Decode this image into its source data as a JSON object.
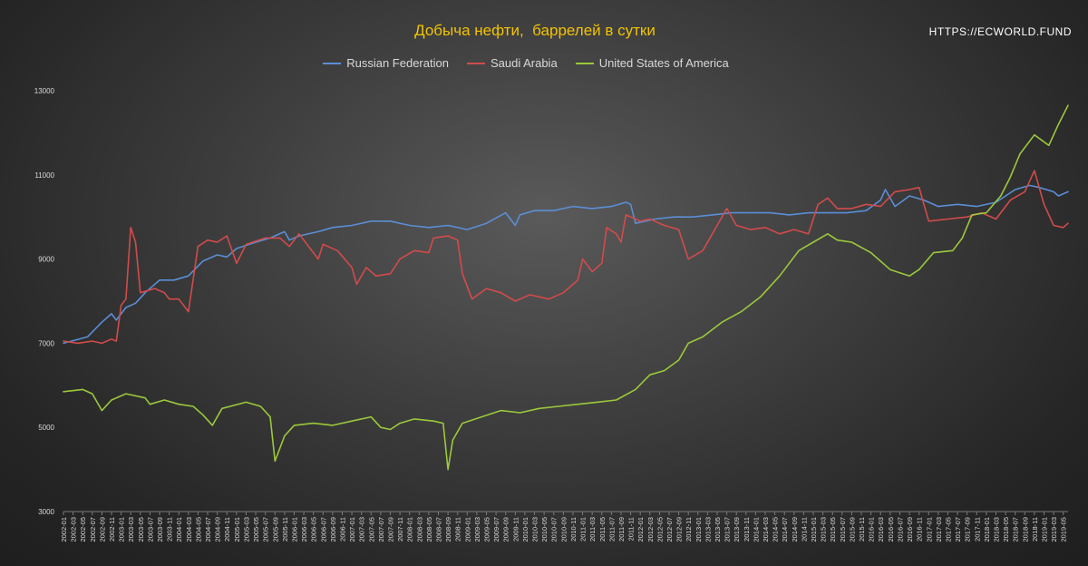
{
  "chart_data": {
    "type": "line",
    "title": "Добыча нефти,  баррелей в сутки",
    "xlabel": "",
    "ylabel": "",
    "ylim": [
      3000,
      13000
    ],
    "yticks": [
      3000,
      5000,
      7000,
      9000,
      11000,
      13000
    ],
    "grid": false,
    "legend_position": "top",
    "x_ticks": [
      "2002-01",
      "2002-03",
      "2002-05",
      "2002-07",
      "2002-09",
      "2002-11",
      "2003-01",
      "2003-03",
      "2003-05",
      "2003-07",
      "2003-09",
      "2003-11",
      "2004-01",
      "2004-03",
      "2004-05",
      "2004-07",
      "2004-09",
      "2004-11",
      "2005-01",
      "2005-03",
      "2005-05",
      "2005-07",
      "2005-09",
      "2005-11",
      "2006-01",
      "2006-03",
      "2006-05",
      "2006-07",
      "2006-09",
      "2006-11",
      "2007-01",
      "2007-03",
      "2007-05",
      "2007-07",
      "2007-09",
      "2007-11",
      "2008-01",
      "2008-03",
      "2008-05",
      "2008-07",
      "2008-09",
      "2008-11",
      "2009-01",
      "2009-03",
      "2009-05",
      "2009-07",
      "2009-09",
      "2009-11",
      "2010-01",
      "2010-03",
      "2010-05",
      "2010-07",
      "2010-09",
      "2010-11",
      "2011-01",
      "2011-03",
      "2011-05",
      "2011-07",
      "2011-09",
      "2011-11",
      "2012-01",
      "2012-03",
      "2012-05",
      "2012-07",
      "2012-09",
      "2012-11",
      "2013-01",
      "2013-03",
      "2013-05",
      "2013-07",
      "2013-09",
      "2013-11",
      "2014-01",
      "2014-03",
      "2014-05",
      "2014-07",
      "2014-09",
      "2014-11",
      "2015-01",
      "2015-03",
      "2015-05",
      "2015-07",
      "2015-09",
      "2015-11",
      "2016-01",
      "2016-03",
      "2016-05",
      "2016-07",
      "2016-09",
      "2016-11",
      "2017-01",
      "2017-03",
      "2017-05",
      "2017-07",
      "2017-09",
      "2017-11",
      "2018-01",
      "2018-03",
      "2018-05",
      "2018-07",
      "2018-09",
      "2018-11",
      "2019-01",
      "2019-03",
      "2019-05"
    ],
    "series": [
      {
        "name": "Russian Federation",
        "color": "#5b8ed6",
        "points": [
          [
            "2002-01",
            7000
          ],
          [
            "2002-06",
            7150
          ],
          [
            "2002-09",
            7500
          ],
          [
            "2002-11",
            7700
          ],
          [
            "2002-12",
            7550
          ],
          [
            "2003-02",
            7850
          ],
          [
            "2003-04",
            7950
          ],
          [
            "2003-06",
            8200
          ],
          [
            "2003-09",
            8500
          ],
          [
            "2003-12",
            8500
          ],
          [
            "2004-03",
            8600
          ],
          [
            "2004-06",
            8950
          ],
          [
            "2004-09",
            9100
          ],
          [
            "2004-11",
            9050
          ],
          [
            "2005-01",
            9250
          ],
          [
            "2005-05",
            9400
          ],
          [
            "2005-08",
            9500
          ],
          [
            "2005-11",
            9650
          ],
          [
            "2005-12",
            9450
          ],
          [
            "2006-02",
            9550
          ],
          [
            "2006-06",
            9650
          ],
          [
            "2006-09",
            9750
          ],
          [
            "2007-01",
            9800
          ],
          [
            "2007-05",
            9900
          ],
          [
            "2007-09",
            9900
          ],
          [
            "2008-01",
            9800
          ],
          [
            "2008-05",
            9750
          ],
          [
            "2008-09",
            9800
          ],
          [
            "2009-01",
            9700
          ],
          [
            "2009-05",
            9850
          ],
          [
            "2009-09",
            10100
          ],
          [
            "2009-11",
            9800
          ],
          [
            "2009-12",
            10050
          ],
          [
            "2010-03",
            10150
          ],
          [
            "2010-07",
            10150
          ],
          [
            "2010-11",
            10250
          ],
          [
            "2011-03",
            10200
          ],
          [
            "2011-07",
            10250
          ],
          [
            "2011-10",
            10350
          ],
          [
            "2011-11",
            10300
          ],
          [
            "2011-12",
            9850
          ],
          [
            "2012-04",
            9950
          ],
          [
            "2012-08",
            10000
          ],
          [
            "2012-12",
            10000
          ],
          [
            "2013-04",
            10050
          ],
          [
            "2013-08",
            10100
          ],
          [
            "2013-12",
            10100
          ],
          [
            "2014-04",
            10100
          ],
          [
            "2014-08",
            10050
          ],
          [
            "2014-12",
            10100
          ],
          [
            "2015-04",
            10100
          ],
          [
            "2015-08",
            10100
          ],
          [
            "2015-12",
            10150
          ],
          [
            "2016-03",
            10400
          ],
          [
            "2016-04",
            10650
          ],
          [
            "2016-06",
            10250
          ],
          [
            "2016-09",
            10500
          ],
          [
            "2016-12",
            10400
          ],
          [
            "2017-03",
            10250
          ],
          [
            "2017-07",
            10300
          ],
          [
            "2017-11",
            10250
          ],
          [
            "2018-03",
            10350
          ],
          [
            "2018-07",
            10650
          ],
          [
            "2018-10",
            10750
          ],
          [
            "2018-12",
            10700
          ],
          [
            "2019-03",
            10600
          ],
          [
            "2019-04",
            10500
          ],
          [
            "2019-06",
            10600
          ]
        ]
      },
      {
        "name": "Saudi Arabia",
        "color": "#d24b4b",
        "points": [
          [
            "2002-01",
            7050
          ],
          [
            "2002-04",
            7000
          ],
          [
            "2002-07",
            7050
          ],
          [
            "2002-09",
            7000
          ],
          [
            "2002-11",
            7100
          ],
          [
            "2002-12",
            7050
          ],
          [
            "2003-01",
            7900
          ],
          [
            "2003-02",
            8050
          ],
          [
            "2003-03",
            9750
          ],
          [
            "2003-04",
            9400
          ],
          [
            "2003-05",
            8200
          ],
          [
            "2003-08",
            8300
          ],
          [
            "2003-10",
            8200
          ],
          [
            "2003-11",
            8050
          ],
          [
            "2004-01",
            8050
          ],
          [
            "2004-03",
            7750
          ],
          [
            "2004-05",
            9300
          ],
          [
            "2004-07",
            9450
          ],
          [
            "2004-09",
            9400
          ],
          [
            "2004-11",
            9550
          ],
          [
            "2005-01",
            8900
          ],
          [
            "2005-03",
            9350
          ],
          [
            "2005-07",
            9500
          ],
          [
            "2005-10",
            9500
          ],
          [
            "2005-12",
            9300
          ],
          [
            "2006-02",
            9600
          ],
          [
            "2006-06",
            9000
          ],
          [
            "2006-07",
            9350
          ],
          [
            "2006-10",
            9200
          ],
          [
            "2007-01",
            8800
          ],
          [
            "2007-02",
            8400
          ],
          [
            "2007-04",
            8800
          ],
          [
            "2007-06",
            8600
          ],
          [
            "2007-09",
            8650
          ],
          [
            "2007-11",
            9000
          ],
          [
            "2008-02",
            9200
          ],
          [
            "2008-05",
            9150
          ],
          [
            "2008-06",
            9500
          ],
          [
            "2008-09",
            9550
          ],
          [
            "2008-11",
            9450
          ],
          [
            "2008-12",
            8650
          ],
          [
            "2009-02",
            8050
          ],
          [
            "2009-05",
            8300
          ],
          [
            "2009-08",
            8200
          ],
          [
            "2009-11",
            8000
          ],
          [
            "2010-02",
            8150
          ],
          [
            "2010-06",
            8050
          ],
          [
            "2010-09",
            8200
          ],
          [
            "2010-12",
            8500
          ],
          [
            "2011-01",
            9000
          ],
          [
            "2011-03",
            8700
          ],
          [
            "2011-05",
            8900
          ],
          [
            "2011-06",
            9750
          ],
          [
            "2011-08",
            9600
          ],
          [
            "2011-09",
            9400
          ],
          [
            "2011-10",
            10050
          ],
          [
            "2012-01",
            9900
          ],
          [
            "2012-03",
            9950
          ],
          [
            "2012-06",
            9800
          ],
          [
            "2012-09",
            9700
          ],
          [
            "2012-11",
            9000
          ],
          [
            "2013-02",
            9200
          ],
          [
            "2013-05",
            9800
          ],
          [
            "2013-07",
            10200
          ],
          [
            "2013-09",
            9800
          ],
          [
            "2013-12",
            9700
          ],
          [
            "2014-03",
            9750
          ],
          [
            "2014-06",
            9600
          ],
          [
            "2014-09",
            9700
          ],
          [
            "2014-12",
            9600
          ],
          [
            "2015-02",
            10300
          ],
          [
            "2015-04",
            10450
          ],
          [
            "2015-06",
            10200
          ],
          [
            "2015-09",
            10200
          ],
          [
            "2015-12",
            10300
          ],
          [
            "2016-03",
            10250
          ],
          [
            "2016-06",
            10600
          ],
          [
            "2016-09",
            10650
          ],
          [
            "2016-11",
            10700
          ],
          [
            "2017-01",
            9900
          ],
          [
            "2017-05",
            9950
          ],
          [
            "2017-09",
            10000
          ],
          [
            "2017-12",
            10100
          ],
          [
            "2018-03",
            9950
          ],
          [
            "2018-06",
            10400
          ],
          [
            "2018-09",
            10600
          ],
          [
            "2018-11",
            11100
          ],
          [
            "2018-12",
            10700
          ],
          [
            "2019-01",
            10300
          ],
          [
            "2019-03",
            9800
          ],
          [
            "2019-05",
            9750
          ],
          [
            "2019-06",
            9850
          ]
        ]
      },
      {
        "name": "United States of America",
        "color": "#9bc93b",
        "points": [
          [
            "2002-01",
            5850
          ],
          [
            "2002-05",
            5900
          ],
          [
            "2002-07",
            5800
          ],
          [
            "2002-09",
            5400
          ],
          [
            "2002-11",
            5650
          ],
          [
            "2003-02",
            5800
          ],
          [
            "2003-06",
            5700
          ],
          [
            "2003-07",
            5550
          ],
          [
            "2003-10",
            5650
          ],
          [
            "2004-01",
            5550
          ],
          [
            "2004-04",
            5500
          ],
          [
            "2004-06",
            5300
          ],
          [
            "2004-08",
            5050
          ],
          [
            "2004-10",
            5450
          ],
          [
            "2005-03",
            5600
          ],
          [
            "2005-06",
            5500
          ],
          [
            "2005-08",
            5250
          ],
          [
            "2005-09",
            4200
          ],
          [
            "2005-11",
            4800
          ],
          [
            "2006-01",
            5050
          ],
          [
            "2006-05",
            5100
          ],
          [
            "2006-09",
            5050
          ],
          [
            "2007-01",
            5150
          ],
          [
            "2007-05",
            5250
          ],
          [
            "2007-07",
            5000
          ],
          [
            "2007-09",
            4950
          ],
          [
            "2007-11",
            5100
          ],
          [
            "2008-02",
            5200
          ],
          [
            "2008-06",
            5150
          ],
          [
            "2008-08",
            5100
          ],
          [
            "2008-09",
            4000
          ],
          [
            "2008-10",
            4700
          ],
          [
            "2008-12",
            5100
          ],
          [
            "2009-04",
            5250
          ],
          [
            "2009-08",
            5400
          ],
          [
            "2009-12",
            5350
          ],
          [
            "2010-04",
            5450
          ],
          [
            "2010-08",
            5500
          ],
          [
            "2010-12",
            5550
          ],
          [
            "2011-04",
            5600
          ],
          [
            "2011-08",
            5650
          ],
          [
            "2011-12",
            5900
          ],
          [
            "2012-03",
            6250
          ],
          [
            "2012-06",
            6350
          ],
          [
            "2012-09",
            6600
          ],
          [
            "2012-11",
            7000
          ],
          [
            "2013-02",
            7150
          ],
          [
            "2013-06",
            7500
          ],
          [
            "2013-10",
            7750
          ],
          [
            "2014-02",
            8100
          ],
          [
            "2014-06",
            8600
          ],
          [
            "2014-10",
            9200
          ],
          [
            "2015-01",
            9400
          ],
          [
            "2015-04",
            9600
          ],
          [
            "2015-06",
            9450
          ],
          [
            "2015-09",
            9400
          ],
          [
            "2016-01",
            9150
          ],
          [
            "2016-05",
            8750
          ],
          [
            "2016-09",
            8600
          ],
          [
            "2016-11",
            8750
          ],
          [
            "2017-02",
            9150
          ],
          [
            "2017-06",
            9200
          ],
          [
            "2017-08",
            9500
          ],
          [
            "2017-10",
            10050
          ],
          [
            "2018-01",
            10100
          ],
          [
            "2018-04",
            10500
          ],
          [
            "2018-06",
            10950
          ],
          [
            "2018-08",
            11500
          ],
          [
            "2018-11",
            11950
          ],
          [
            "2019-02",
            11700
          ],
          [
            "2019-04",
            12200
          ],
          [
            "2019-06",
            12650
          ]
        ]
      }
    ]
  },
  "watermark": "HTTPS://ECWORLD.FUND"
}
